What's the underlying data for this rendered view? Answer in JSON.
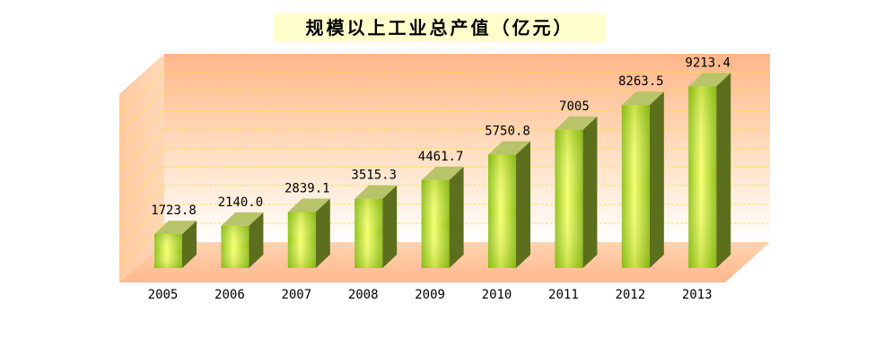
{
  "chart_data": {
    "type": "bar",
    "title": "规模以上工业总产值（亿元）",
    "xlabel": "",
    "ylabel": "",
    "ylim": [
      0,
      10000
    ],
    "grid": true,
    "categories": [
      "2005",
      "2006",
      "2007",
      "2008",
      "2009",
      "2010",
      "2011",
      "2012",
      "2013"
    ],
    "values": [
      1723.8,
      2140.0,
      2839.1,
      3515.3,
      4461.7,
      5750.8,
      7005,
      8263.5,
      9213.4
    ],
    "value_labels": [
      "1723.8",
      "2140.0",
      "2839.1",
      "3515.3",
      "4461.7",
      "5750.8",
      "7005",
      "8263.5",
      "9213.4"
    ],
    "colors": {
      "bar_light": "#f2ff66",
      "bar_mid": "#9ccc1a",
      "bar_side": "#5c6f1c",
      "bar_top": "#b7c46a",
      "wall_top": "#ffb88a",
      "wall_bottom": "#ffffff",
      "grid": "#ffdf40"
    }
  }
}
